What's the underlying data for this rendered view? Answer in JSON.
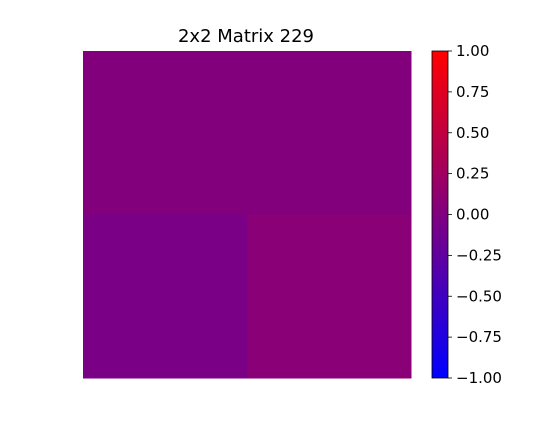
{
  "chart_data": {
    "type": "heatmap",
    "title": "2x2 Matrix 229",
    "xlabel": "",
    "ylabel": "",
    "rows": 2,
    "cols": 2,
    "values": [
      [
        0.02,
        0.02
      ],
      [
        -0.05,
        0.08
      ]
    ],
    "colorbar": {
      "min": -1.0,
      "max": 1.0,
      "ticks": [
        1.0,
        0.75,
        0.5,
        0.25,
        0.0,
        -0.25,
        -0.5,
        -0.75,
        -1.0
      ],
      "tick_labels": [
        "1.00",
        "0.75",
        "0.50",
        "0.25",
        "0.00",
        "−0.25",
        "−0.50",
        "−0.75",
        "−1.00"
      ],
      "colors": {
        "low": "#0000ff",
        "mid": "#800080",
        "high": "#ff0000"
      }
    },
    "axes_visible": false,
    "grid": false
  }
}
